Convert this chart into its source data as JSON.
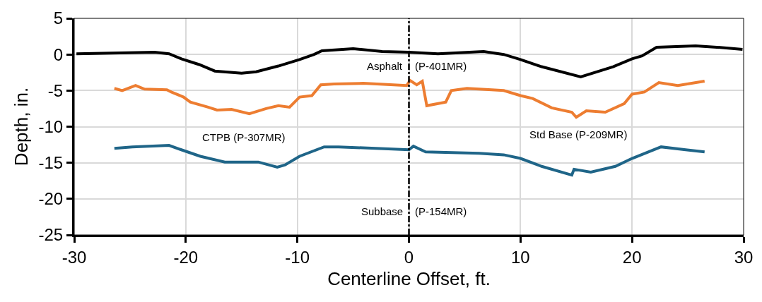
{
  "chart_data": {
    "type": "line",
    "xlabel": "Centerline Offset, ft.",
    "ylabel": "Depth, in.",
    "xlim": [
      -30,
      30
    ],
    "xticks": [
      -30,
      -20,
      -10,
      0,
      10,
      20,
      30
    ],
    "ylim": [
      -25,
      5
    ],
    "yticks": [
      -25,
      -20,
      -15,
      -10,
      -5,
      0,
      5
    ],
    "grid": true,
    "marker": "none",
    "line_style": "solid",
    "series": [
      {
        "color": "#000000",
        "x": [
          -29.8,
          -22.8,
          -21.5,
          -20.4,
          -18.8,
          -17.4,
          -15,
          -13.7,
          -11.7,
          -9.8,
          -8.5,
          -7.8,
          -5,
          -2.4,
          0,
          2.6,
          6.7,
          8.5,
          10,
          11.9,
          15.4,
          18.3,
          20,
          20.9,
          22.2,
          25.7,
          27.6,
          29.9
        ],
        "values": [
          0.1,
          0.3,
          0.1,
          -0.6,
          -1.4,
          -2.3,
          -2.6,
          -2.4,
          -1.6,
          -0.7,
          0,
          0.5,
          0.8,
          0.4,
          0.3,
          0.1,
          0.4,
          0,
          -0.7,
          -1.7,
          -3.1,
          -1.7,
          -0.6,
          -0.2,
          1.0,
          1.2,
          1.0,
          0.7
        ]
      },
      {
        "color": "#ed7d31",
        "x": [
          -26.4,
          -25.7,
          -24.5,
          -23.7,
          -21.7,
          -21.3,
          -20.2,
          -19.6,
          -18,
          -17.2,
          -15.9,
          -14.3,
          -12.8,
          -11.7,
          -10.7,
          -9.8,
          -8.7,
          -7.9,
          -6.7,
          -4.1,
          -0.2,
          0.1,
          0.7,
          1.2,
          1.6,
          3.3,
          3.8,
          5.2,
          8.5,
          10,
          11.1,
          12.8,
          14.6,
          15,
          15.9,
          17.6,
          19.3,
          20,
          21.1,
          22.4,
          24.1,
          26.5
        ],
        "values": [
          -4.7,
          -5.0,
          -4.3,
          -4.8,
          -4.9,
          -5.2,
          -5.9,
          -6.6,
          -7.3,
          -7.7,
          -7.6,
          -8.2,
          -7.5,
          -7.1,
          -7.3,
          -5.9,
          -5.7,
          -4.2,
          -4.1,
          -4.0,
          -4.3,
          -3.6,
          -4.2,
          -3.7,
          -7.1,
          -6.6,
          -5.0,
          -4.7,
          -5.0,
          -5.7,
          -6.1,
          -7.4,
          -8.0,
          -8.7,
          -7.8,
          -8.0,
          -6.8,
          -5.5,
          -5.2,
          -3.9,
          -4.3,
          -3.7
        ]
      },
      {
        "color": "#1f6588",
        "x": [
          -26.4,
          -24.8,
          -21.5,
          -20.4,
          -18.7,
          -16.5,
          -13.5,
          -11.8,
          -11.1,
          -9.8,
          -7.6,
          -6.3,
          0,
          0.4,
          1.5,
          6.3,
          8.5,
          10,
          11.9,
          14.6,
          14.8,
          16.3,
          18.5,
          20,
          22.6,
          24.8,
          26.5
        ],
        "values": [
          -13.0,
          -12.8,
          -12.6,
          -13.2,
          -14.1,
          -14.9,
          -14.9,
          -15.6,
          -15.3,
          -14.1,
          -12.8,
          -12.8,
          -13.2,
          -12.7,
          -13.5,
          -13.7,
          -13.9,
          -14.4,
          -15.5,
          -16.7,
          -15.9,
          -16.3,
          -15.5,
          -14.4,
          -12.8,
          -13.2,
          -13.5
        ]
      }
    ],
    "ref_lines": [
      {
        "axis": "x",
        "value": 0,
        "color": "#000000",
        "line_style": "dashed"
      }
    ],
    "annotations": [
      "Asphalt",
      "(P-401MR)",
      "CTPB (P-307MR)",
      "Std Base (P-209MR)",
      "Subbase",
      "(P-154MR)"
    ]
  }
}
